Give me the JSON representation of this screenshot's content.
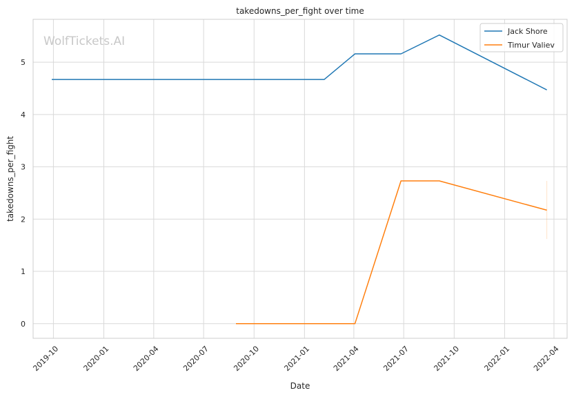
{
  "chart_data": {
    "type": "line",
    "title": "takedowns_per_fight over time",
    "xlabel": "Date",
    "ylabel": "takedowns_per_fight",
    "watermark": "WolfTickets.AI",
    "x_ticks": [
      "2019-10",
      "2020-01",
      "2020-04",
      "2020-07",
      "2020-10",
      "2021-01",
      "2021-04",
      "2021-07",
      "2021-10",
      "2022-01",
      "2022-04"
    ],
    "y_ticks": [
      "0",
      "1",
      "2",
      "3",
      "4",
      "5"
    ],
    "xlim": [
      "2019-08-25",
      "2022-04-25"
    ],
    "ylim": [
      -0.28,
      5.82
    ],
    "grid": true,
    "legend_position": "top-right",
    "colors": {
      "Jack Shore": "#1f77b4",
      "Timur Valiev": "#ff7f0e"
    },
    "series": [
      {
        "name": "Jack Shore",
        "points": [
          {
            "x": "2019-09-28",
            "y": 4.67
          },
          {
            "x": "2021-02-06",
            "y": 4.67
          },
          {
            "x": "2021-04-03",
            "y": 5.16
          },
          {
            "x": "2021-06-26",
            "y": 5.16
          },
          {
            "x": "2021-09-04",
            "y": 5.52
          },
          {
            "x": "2022-03-19",
            "y": 4.47
          }
        ]
      },
      {
        "name": "Timur Valiev",
        "points": [
          {
            "x": "2020-08-29",
            "y": 0.0
          },
          {
            "x": "2021-04-03",
            "y": 0.0
          },
          {
            "x": "2021-06-26",
            "y": 2.73
          },
          {
            "x": "2021-09-04",
            "y": 2.73
          },
          {
            "x": "2022-03-19",
            "y": 2.17
          }
        ],
        "error_bar": {
          "x": "2022-03-19",
          "low": 1.62,
          "high": 2.73
        }
      }
    ]
  }
}
